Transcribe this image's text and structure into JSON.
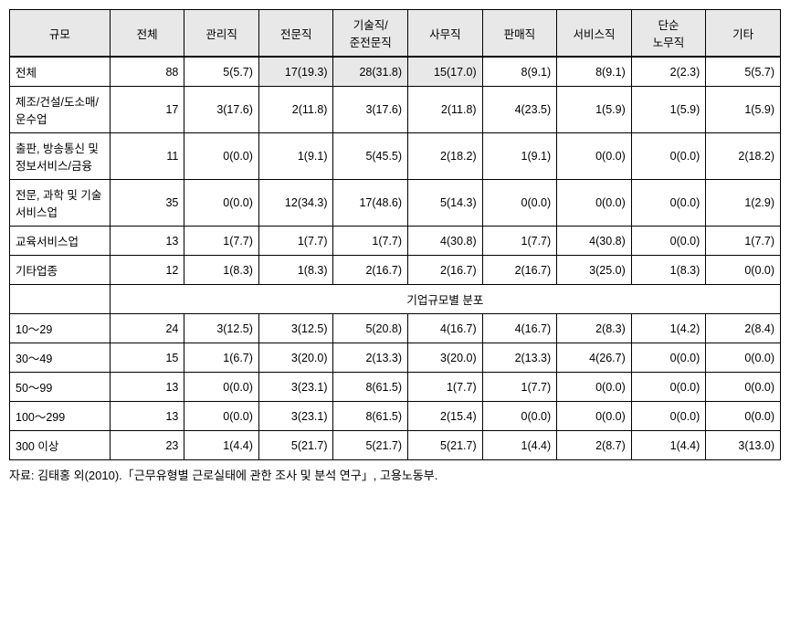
{
  "table": {
    "headers": [
      "규모",
      "전체",
      "관리직",
      "전문직",
      "기술직/\n준전문직",
      "사무직",
      "판매직",
      "서비스직",
      "단순\n노무직",
      "기타"
    ],
    "rows_top": [
      {
        "label": "전체",
        "cells": [
          "88",
          "5(5.7)",
          "17(19.3)",
          "28(31.8)",
          "15(17.0)",
          "8(9.1)",
          "8(9.1)",
          "2(2.3)",
          "5(5.7)"
        ],
        "highlight": [
          2,
          3,
          4
        ]
      },
      {
        "label": "제조/건설/도소매/\n운수업",
        "cells": [
          "17",
          "3(17.6)",
          "2(11.8)",
          "3(17.6)",
          "2(11.8)",
          "4(23.5)",
          "1(5.9)",
          "1(5.9)",
          "1(5.9)"
        ]
      },
      {
        "label": "출판, 방송통신 및\n정보서비스/금융",
        "cells": [
          "11",
          "0(0.0)",
          "1(9.1)",
          "5(45.5)",
          "2(18.2)",
          "1(9.1)",
          "0(0.0)",
          "0(0.0)",
          "2(18.2)"
        ]
      },
      {
        "label": "전문, 과학 및 기술\n서비스업",
        "cells": [
          "35",
          "0(0.0)",
          "12(34.3)",
          "17(48.6)",
          "5(14.3)",
          "0(0.0)",
          "0(0.0)",
          "0(0.0)",
          "1(2.9)"
        ]
      },
      {
        "label": "교육서비스업",
        "cells": [
          "13",
          "1(7.7)",
          "1(7.7)",
          "1(7.7)",
          "4(30.8)",
          "1(7.7)",
          "4(30.8)",
          "0(0.0)",
          "1(7.7)"
        ]
      },
      {
        "label": "기타업종",
        "cells": [
          "12",
          "1(8.3)",
          "1(8.3)",
          "2(16.7)",
          "2(16.7)",
          "2(16.7)",
          "3(25.0)",
          "1(8.3)",
          "0(0.0)"
        ]
      }
    ],
    "section_label": "기업규모별 분포",
    "rows_bottom": [
      {
        "label": "10～29",
        "cells": [
          "24",
          "3(12.5)",
          "3(12.5)",
          "5(20.8)",
          "4(16.7)",
          "4(16.7)",
          "2(8.3)",
          "1(4.2)",
          "2(8.4)"
        ]
      },
      {
        "label": "30～49",
        "cells": [
          "15",
          "1(6.7)",
          "3(20.0)",
          "2(13.3)",
          "3(20.0)",
          "2(13.3)",
          "4(26.7)",
          "0(0.0)",
          "0(0.0)"
        ]
      },
      {
        "label": "50～99",
        "cells": [
          "13",
          "0(0.0)",
          "3(23.1)",
          "8(61.5)",
          "1(7.7)",
          "1(7.7)",
          "0(0.0)",
          "0(0.0)",
          "0(0.0)"
        ]
      },
      {
        "label": "100～299",
        "cells": [
          "13",
          "0(0.0)",
          "3(23.1)",
          "8(61.5)",
          "2(15.4)",
          "0(0.0)",
          "0(0.0)",
          "0(0.0)",
          "0(0.0)"
        ]
      },
      {
        "label": "300 이상",
        "cells": [
          "23",
          "1(4.4)",
          "5(21.7)",
          "5(21.7)",
          "5(21.7)",
          "1(4.4)",
          "2(8.7)",
          "1(4.4)",
          "3(13.0)"
        ]
      }
    ]
  },
  "footnote": "자료: 김태홍 외(2010).「근무유형별 근로실태에 관한 조사 및 분석 연구」, 고용노동부."
}
